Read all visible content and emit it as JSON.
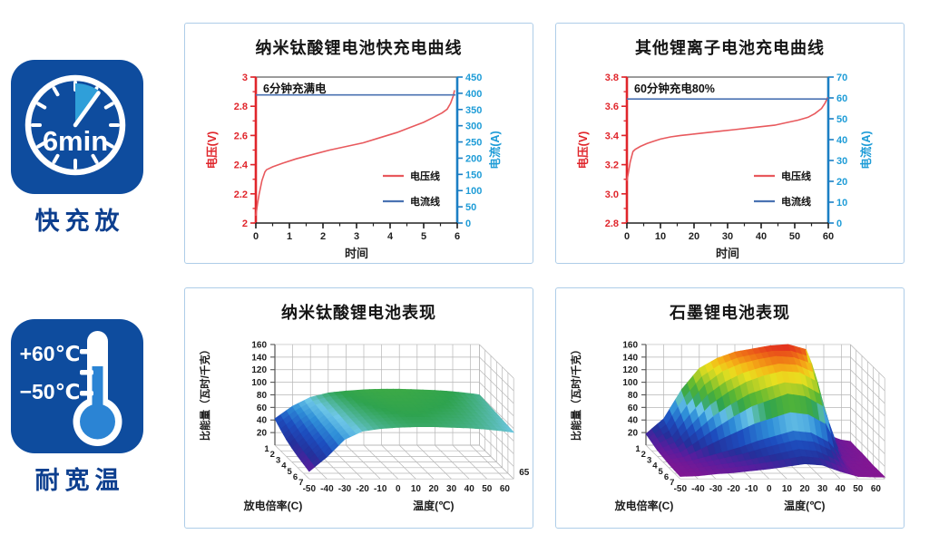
{
  "badges": {
    "fast_charge": {
      "label": "快充放",
      "clock_text": "6min"
    },
    "wide_temp": {
      "label": "耐宽温",
      "high": "+60℃",
      "low": "−50℃"
    }
  },
  "colors": {
    "badge_blue": "#0e4c9e",
    "badge_accent": "#2f9fd9",
    "badge_label": "#0d3f8f",
    "thermo_fill": "#2b84d4",
    "panel_border": "#aecde8",
    "title_text": "#151515",
    "red_axis": "#e0252b",
    "red_curve": "#e8595d",
    "blue_axis_line": "#1b7fc4",
    "blue_axis_text": "#1e9cd7",
    "blue_curve": "#4a72b2",
    "top_line_gray": "#9b9b9b",
    "grid_gray": "#b6b6b6",
    "label_dark": "#1c1c1c"
  },
  "surface_colormap": [
    [
      0.0,
      "#8f158f"
    ],
    [
      0.09,
      "#5a1d9e"
    ],
    [
      0.17,
      "#24309b"
    ],
    [
      0.28,
      "#1d4fc0"
    ],
    [
      0.38,
      "#2f8fd8"
    ],
    [
      0.46,
      "#6fc8e8"
    ],
    [
      0.53,
      "#2fa34f"
    ],
    [
      0.62,
      "#5cb832"
    ],
    [
      0.7,
      "#a8cc28"
    ],
    [
      0.78,
      "#e8e020"
    ],
    [
      0.85,
      "#f5b517"
    ],
    [
      0.92,
      "#ef7216"
    ],
    [
      1.0,
      "#e02020"
    ]
  ],
  "chart_data": [
    {
      "type": "line",
      "title": "纳米钛酸锂电池快充电曲线",
      "annotation": "6分钟充满电",
      "xlabel": "时间",
      "ylabel_left": "电压(V)",
      "ylabel_right": "电流(A)",
      "x_axis": {
        "min": 0,
        "max": 6,
        "ticks": [
          "0",
          "1",
          "2",
          "3",
          "4",
          "5",
          "6"
        ],
        "minor": 0.5
      },
      "left_axis": {
        "min": 2,
        "max": 3,
        "ticks": [
          "2",
          "2.2",
          "2.4",
          "2.6",
          "2.8",
          "3"
        ],
        "minor": 0.1
      },
      "right_axis": {
        "min": 0,
        "max": 450,
        "ticks": [
          "0",
          "50",
          "100",
          "150",
          "200",
          "250",
          "300",
          "350",
          "400",
          "450"
        ]
      },
      "series": [
        {
          "name": "电压线",
          "axis": "left",
          "color_key": "red_curve",
          "points": [
            [
              0,
              2.05
            ],
            [
              0.05,
              2.13
            ],
            [
              0.1,
              2.2
            ],
            [
              0.18,
              2.29
            ],
            [
              0.27,
              2.35
            ],
            [
              0.32,
              2.365
            ],
            [
              0.5,
              2.385
            ],
            [
              0.8,
              2.41
            ],
            [
              1.2,
              2.44
            ],
            [
              1.7,
              2.47
            ],
            [
              2.2,
              2.5
            ],
            [
              2.7,
              2.525
            ],
            [
              3.2,
              2.55
            ],
            [
              3.7,
              2.585
            ],
            [
              4.2,
              2.62
            ],
            [
              4.6,
              2.655
            ],
            [
              5.0,
              2.69
            ],
            [
              5.3,
              2.725
            ],
            [
              5.55,
              2.755
            ],
            [
              5.7,
              2.78
            ],
            [
              5.8,
              2.82
            ],
            [
              5.88,
              2.87
            ],
            [
              5.92,
              2.91
            ]
          ]
        },
        {
          "name": "电流线",
          "axis": "right",
          "color_key": "blue_curve",
          "points": [
            [
              0,
              395
            ],
            [
              5.95,
              395
            ]
          ]
        }
      ]
    },
    {
      "type": "line",
      "title": "其他锂离子电池充电曲线",
      "annotation": "60分钟充电80%",
      "xlabel": "时间",
      "ylabel_left": "电压(V)",
      "ylabel_right": "电流(A)",
      "x_axis": {
        "min": 0,
        "max": 60,
        "ticks": [
          "0",
          "10",
          "20",
          "30",
          "40",
          "50",
          "60"
        ],
        "minor": 5
      },
      "left_axis": {
        "min": 2.8,
        "max": 3.8,
        "ticks": [
          "2.8",
          "3.0",
          "3.2",
          "3.4",
          "3.6",
          "3.8"
        ],
        "minor": 0.1
      },
      "right_axis": {
        "min": 0,
        "max": 70,
        "ticks": [
          "0",
          "10",
          "20",
          "30",
          "40",
          "50",
          "60",
          "70"
        ]
      },
      "series": [
        {
          "name": "电压线",
          "axis": "left",
          "color_key": "red_curve",
          "points": [
            [
              0,
              3.09
            ],
            [
              0.5,
              3.15
            ],
            [
              1,
              3.22
            ],
            [
              1.8,
              3.29
            ],
            [
              2.5,
              3.305
            ],
            [
              4,
              3.325
            ],
            [
              6,
              3.345
            ],
            [
              8,
              3.36
            ],
            [
              10,
              3.375
            ],
            [
              13,
              3.39
            ],
            [
              16,
              3.4
            ],
            [
              20,
              3.41
            ],
            [
              24,
              3.42
            ],
            [
              28,
              3.43
            ],
            [
              32,
              3.44
            ],
            [
              36,
              3.45
            ],
            [
              40,
              3.46
            ],
            [
              44,
              3.47
            ],
            [
              48,
              3.49
            ],
            [
              51,
              3.505
            ],
            [
              54,
              3.525
            ],
            [
              56,
              3.55
            ],
            [
              58,
              3.585
            ],
            [
              59,
              3.62
            ],
            [
              59.8,
              3.66
            ]
          ]
        },
        {
          "name": "电流线",
          "axis": "right",
          "color_key": "blue_curve",
          "points": [
            [
              0,
              59.5
            ],
            [
              60,
              59.5
            ]
          ]
        }
      ]
    },
    {
      "type": "surface",
      "title": "纳米钛酸锂电池表现",
      "zlabel": "比能量（瓦时/千克）",
      "xlabel": "温度(℃)",
      "ylabel": "放电倍率(C)",
      "temps": [
        -50,
        -40,
        -30,
        -20,
        -10,
        0,
        10,
        20,
        30,
        40,
        50,
        60,
        65
      ],
      "temp_tick_labels": [
        "-50",
        "-40",
        "-30",
        "-20",
        "-10",
        "0",
        "10",
        "20",
        "30",
        "40",
        "50",
        "60"
      ],
      "end_label": "65",
      "rate_labels": [
        "1",
        "2",
        "3",
        "4",
        "5",
        "6",
        "7"
      ],
      "z_ticks": [
        "20",
        "40",
        "60",
        "80",
        "100",
        "120",
        "140",
        "160"
      ],
      "z_max": 160,
      "z": [
        [
          42,
          62,
          76,
          83,
          86,
          88,
          89,
          89,
          88,
          87,
          85,
          82,
          80
        ],
        [
          34,
          57,
          73,
          81,
          85,
          87,
          88,
          88,
          87,
          86,
          84,
          81,
          79
        ],
        [
          27,
          52,
          71,
          80,
          84,
          86,
          87,
          87,
          86,
          85,
          83,
          80,
          78
        ],
        [
          22,
          47,
          69,
          79,
          83,
          85,
          86,
          86,
          85,
          84,
          82,
          79,
          77
        ],
        [
          18,
          43,
          67,
          78,
          82,
          84,
          85,
          85,
          84,
          83,
          81,
          78,
          76
        ],
        [
          15,
          39,
          65,
          77,
          81,
          83,
          84,
          84,
          83,
          82,
          80,
          77,
          75
        ],
        [
          12,
          35,
          63,
          76,
          80,
          82,
          83,
          83,
          82,
          81,
          79,
          76,
          74
        ]
      ]
    },
    {
      "type": "surface",
      "title": "石墨锂电池表现",
      "zlabel": "比能量（瓦时/千克）",
      "xlabel": "温度(℃)",
      "ylabel": "放电倍率(C)",
      "temps": [
        -50,
        -40,
        -30,
        -20,
        -10,
        0,
        10,
        20,
        30,
        40,
        50,
        60,
        65
      ],
      "temp_tick_labels": [
        "-50",
        "-40",
        "-30",
        "-20",
        "-10",
        "0",
        "10",
        "20",
        "30",
        "40",
        "50",
        "60"
      ],
      "end_label": "",
      "rate_labels": [
        "1",
        "2",
        "3",
        "4",
        "5",
        "6",
        "7"
      ],
      "z_ticks": [
        "20",
        "40",
        "60",
        "80",
        "100",
        "120",
        "140",
        "160"
      ],
      "z_max": 160,
      "z": [
        [
          18,
          42,
          88,
          122,
          138,
          148,
          153,
          158,
          160,
          152,
          18,
          8,
          6
        ],
        [
          14,
          32,
          72,
          105,
          126,
          138,
          145,
          150,
          148,
          138,
          14,
          7,
          5
        ],
        [
          10,
          22,
          52,
          82,
          102,
          118,
          128,
          135,
          133,
          118,
          11,
          6,
          5
        ],
        [
          8,
          15,
          34,
          54,
          72,
          88,
          98,
          108,
          104,
          88,
          9,
          5,
          4
        ],
        [
          6,
          9,
          16,
          24,
          32,
          42,
          50,
          58,
          55,
          40,
          6,
          4,
          3
        ],
        [
          5,
          7,
          11,
          15,
          20,
          26,
          32,
          38,
          35,
          22,
          5,
          4,
          3
        ],
        [
          4,
          5,
          8,
          10,
          13,
          16,
          20,
          24,
          22,
          12,
          4,
          3,
          3
        ]
      ]
    }
  ]
}
